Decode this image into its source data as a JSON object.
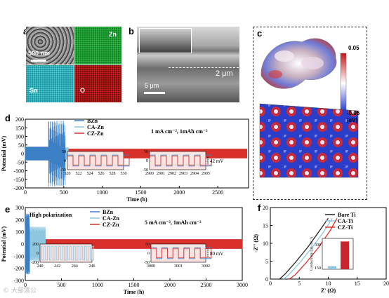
{
  "panel_labels": {
    "a": "a",
    "b": "b",
    "c": "c",
    "d": "d",
    "e": "e",
    "f": "f"
  },
  "panel_a": {
    "scale_bar": "500 nm",
    "maps": [
      {
        "label": "Zn",
        "color": "#1c9a2f"
      },
      {
        "label": "Sn",
        "color": "#27a7b3"
      },
      {
        "label": "O",
        "color": "#a11414"
      }
    ]
  },
  "panel_b": {
    "scale_small": "5 μm",
    "scale_large": "2 μm"
  },
  "panel_c": {
    "cbar_max": "0.05",
    "cbar_min": "-0.05",
    "cbar_unit": "(eV)"
  },
  "panel_d": {
    "ylabel": "Potential (mV)",
    "xlabel": "Time (h)",
    "condition": "1 mA cm⁻², 1mAh cm⁻²",
    "legend": [
      "BZn",
      "CA-Zn",
      "CZ-Zn"
    ],
    "inset_annot": "42 mV"
  },
  "panel_e": {
    "ylabel": "Potential (mV)",
    "xlabel": "Time (h)",
    "note": "High polarization",
    "condition": "5 mA cm⁻², 1mAh cm⁻²",
    "legend": [
      "BZn",
      "CA-Zn",
      "CZ-Zn"
    ],
    "inset_annot": "80 mV"
  },
  "panel_f": {
    "ylabel": "-Z'' (Ω)",
    "xlabel": "Z' (Ω)",
    "legend": [
      "Bare Ti",
      "CA-Ti",
      "CZ-Ti"
    ],
    "inset_ylabel": "Conductivity (μS cm⁻¹)"
  },
  "watermark": "©  大部落公",
  "colors": {
    "bzn": "#3b7fc4",
    "ca": "#8fc6e0",
    "cz": "#d9302b",
    "bare": "#222222"
  },
  "chart_data": [
    {
      "type": "line",
      "title": "",
      "xlabel": "Time (h)",
      "ylabel": "Potential (mV)",
      "xlim": [
        0,
        2900
      ],
      "ylim": [
        -200,
        200
      ],
      "x_ticks": [
        0,
        500,
        1000,
        1500,
        2000,
        2500
      ],
      "y_ticks": [
        -200,
        -150,
        -100,
        -50,
        0,
        50,
        100,
        150,
        200
      ],
      "series": [
        {
          "name": "BZn",
          "x_range": [
            0,
            520
          ],
          "amplitude": 40,
          "spike_region": [
            300,
            520
          ],
          "spike_amplitude": 200
        },
        {
          "name": "CA-Zn",
          "x_range": [
            0,
            560
          ],
          "amplitude": 35
        },
        {
          "name": "CZ-Zn",
          "x_range": [
            0,
            2900
          ],
          "amplitude": 28
        }
      ],
      "insets": [
        {
          "x_ticks": [
            520,
            522,
            524,
            526,
            528,
            530
          ],
          "y_ticks": [
            -50,
            0,
            50
          ]
        },
        {
          "x_ticks": [
            2900,
            2901,
            2902,
            2903,
            2904,
            2905
          ],
          "y_ticks": [
            -50,
            0,
            50
          ],
          "annotation": "42 mV"
        }
      ]
    },
    {
      "type": "line",
      "title": "",
      "xlabel": "Time (h)",
      "ylabel": "Potential (mV)",
      "xlim": [
        0,
        3000
      ],
      "ylim": [
        -300,
        300
      ],
      "x_ticks": [
        0,
        500,
        1000,
        1500,
        2000,
        2500,
        3000
      ],
      "y_ticks": [
        -300,
        -200,
        -100,
        0,
        100,
        200,
        300
      ],
      "series": [
        {
          "name": "BZn",
          "x_range": [
            0,
            60
          ],
          "amplitude": 250
        },
        {
          "name": "CA-Zn",
          "x_range": [
            0,
            280
          ],
          "amplitude": 130
        },
        {
          "name": "CZ-Zn",
          "x_range": [
            0,
            3000
          ],
          "amplitude": 40
        }
      ],
      "insets": [
        {
          "x_ticks": [
            240,
            242,
            244,
            246
          ],
          "y_ticks": [
            -200,
            0,
            200
          ]
        },
        {
          "x_ticks": [
            3000,
            3001,
            3002
          ],
          "y_ticks": [
            -50,
            0,
            50
          ],
          "annotation": "80 mV"
        }
      ]
    },
    {
      "type": "line",
      "title": "",
      "xlabel": "Z' (Ω)",
      "ylabel": "-Z'' (Ω)",
      "xlim": [
        0,
        20
      ],
      "ylim": [
        0,
        20
      ],
      "x_ticks": [
        0,
        5,
        10,
        15,
        20
      ],
      "y_ticks": [
        0,
        5,
        10,
        15,
        20
      ],
      "series": [
        {
          "name": "Bare Ti",
          "x": [
            1.6,
            2.6,
            4.5,
            6.5,
            8.5,
            10.0
          ],
          "y": [
            0,
            1.5,
            5,
            9,
            13.5,
            17
          ]
        },
        {
          "name": "CA-Ti",
          "x": [
            2.3,
            3.2,
            5.2,
            7.2,
            9.2,
            10.7
          ],
          "y": [
            0,
            1.2,
            4.8,
            8.8,
            13.2,
            17
          ]
        },
        {
          "name": "CZ-Ti",
          "x": [
            3.3,
            4.3,
            6.2,
            8.3,
            10.3,
            11.5
          ],
          "y": [
            0,
            1.2,
            4.6,
            8.8,
            13.5,
            17
          ]
        }
      ],
      "inset": {
        "type": "bar",
        "ylabel": "Conductivity (μS cm⁻¹)",
        "y_ticks": [
          150,
          300
        ],
        "values": [
          160,
          320
        ]
      }
    }
  ]
}
